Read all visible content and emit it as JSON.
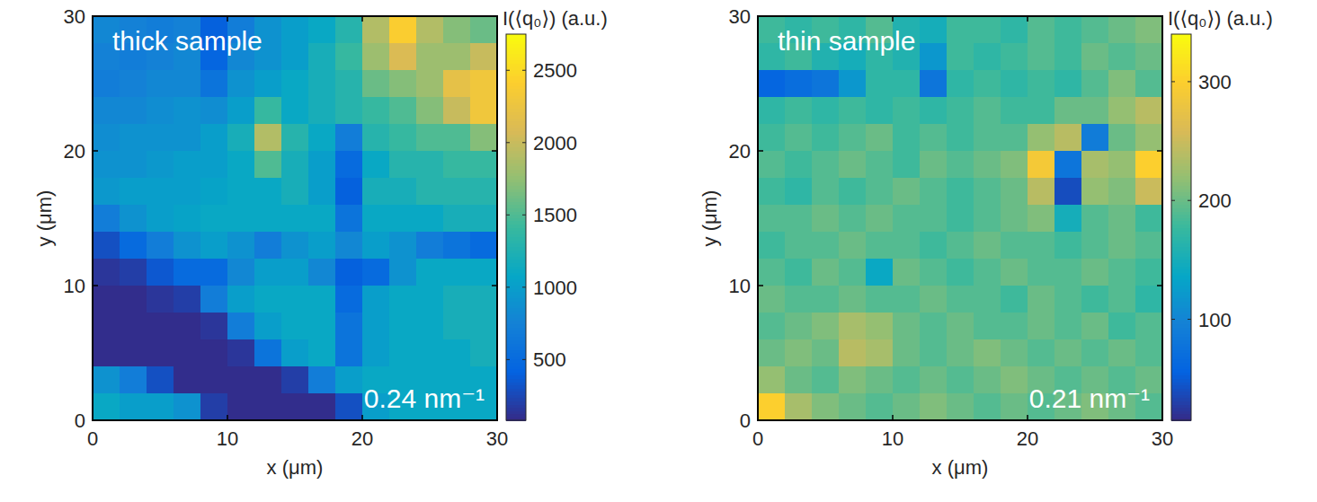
{
  "chart_data": [
    {
      "type": "heatmap",
      "title": "thick sample",
      "annotation": "0.24 nm⁻¹",
      "x_label": "x (μm)",
      "y_label": "y (μm)",
      "xlim": [
        0,
        30
      ],
      "ylim": [
        0,
        30
      ],
      "xticks": [
        0,
        10,
        20,
        30
      ],
      "yticks": [
        0,
        10,
        20,
        30
      ],
      "colorbar_label": "I(⟨q₀⟩) (a.u.)",
      "colorbar_range": [
        80,
        2750
      ],
      "colorbar_ticks": [
        500,
        1000,
        1500,
        2000,
        2500
      ],
      "cells": [
        [
          800,
          750,
          700,
          750,
          400,
          700,
          900,
          1000,
          1100,
          1300,
          1900,
          2400,
          1900,
          1700,
          1600
        ],
        [
          750,
          700,
          750,
          800,
          450,
          800,
          900,
          1000,
          1200,
          1400,
          1800,
          2100,
          1800,
          1800,
          2000
        ],
        [
          700,
          750,
          800,
          800,
          600,
          900,
          1000,
          1100,
          1200,
          1300,
          1600,
          1700,
          1800,
          2200,
          2300
        ],
        [
          800,
          800,
          850,
          900,
          850,
          1000,
          1400,
          1100,
          1200,
          1300,
          1400,
          1500,
          1700,
          2000,
          2300
        ],
        [
          850,
          900,
          900,
          900,
          1000,
          1200,
          1900,
          1300,
          1100,
          700,
          1300,
          1400,
          1500,
          1500,
          1700
        ],
        [
          900,
          900,
          950,
          1000,
          1000,
          1100,
          1500,
          1200,
          1000,
          500,
          1100,
          1300,
          1300,
          1400,
          1400
        ],
        [
          950,
          1000,
          1000,
          1000,
          1050,
          1100,
          1100,
          1200,
          1000,
          400,
          1200,
          1200,
          1300,
          1300,
          1300
        ],
        [
          700,
          900,
          1000,
          1050,
          1100,
          1100,
          1100,
          1100,
          1100,
          600,
          1100,
          1100,
          1100,
          1200,
          1200
        ],
        [
          300,
          500,
          700,
          900,
          1000,
          900,
          700,
          900,
          1000,
          800,
          1000,
          900,
          700,
          600,
          500
        ],
        [
          150,
          200,
          350,
          500,
          500,
          800,
          1000,
          1000,
          800,
          400,
          500,
          900,
          1100,
          1100,
          1100
        ],
        [
          100,
          100,
          150,
          200,
          700,
          1000,
          1100,
          1100,
          1100,
          500,
          1000,
          1100,
          1100,
          1200,
          1200
        ],
        [
          100,
          100,
          100,
          100,
          150,
          700,
          1000,
          1100,
          1100,
          600,
          1000,
          1100,
          1100,
          1200,
          1200
        ],
        [
          100,
          100,
          100,
          100,
          100,
          150,
          600,
          1000,
          1100,
          600,
          1000,
          1100,
          1100,
          1100,
          1200
        ],
        [
          900,
          700,
          300,
          100,
          100,
          100,
          100,
          200,
          700,
          1000,
          1100,
          1100,
          1100,
          1100,
          1100
        ],
        [
          1100,
          1000,
          1000,
          900,
          200,
          100,
          100,
          100,
          100,
          300,
          1000,
          1100,
          1100,
          1100,
          1100
        ]
      ]
    },
    {
      "type": "heatmap",
      "title": "thin sample",
      "annotation": "0.21 nm⁻¹",
      "x_label": "x (μm)",
      "y_label": "y (μm)",
      "xlim": [
        0,
        30
      ],
      "ylim": [
        0,
        30
      ],
      "xticks": [
        0,
        10,
        20,
        30
      ],
      "yticks": [
        0,
        10,
        20,
        30
      ],
      "colorbar_label": "I(⟨q₀⟩) (a.u.)",
      "colorbar_range": [
        15,
        340
      ],
      "colorbar_ticks": [
        100,
        200,
        300
      ],
      "cells": [
        [
          180,
          170,
          180,
          170,
          190,
          160,
          150,
          180,
          180,
          170,
          190,
          180,
          190,
          200,
          210
        ],
        [
          170,
          180,
          160,
          150,
          170,
          160,
          120,
          180,
          170,
          180,
          190,
          180,
          200,
          190,
          200
        ],
        [
          60,
          70,
          80,
          120,
          170,
          170,
          80,
          170,
          180,
          170,
          180,
          170,
          190,
          210,
          190
        ],
        [
          170,
          180,
          170,
          180,
          170,
          180,
          170,
          180,
          190,
          180,
          180,
          200,
          200,
          220,
          240
        ],
        [
          180,
          190,
          180,
          190,
          200,
          180,
          190,
          180,
          190,
          190,
          220,
          240,
          90,
          200,
          220
        ],
        [
          190,
          180,
          190,
          200,
          190,
          180,
          200,
          190,
          200,
          210,
          290,
          80,
          230,
          220,
          300
        ],
        [
          180,
          170,
          190,
          180,
          190,
          200,
          190,
          180,
          190,
          200,
          240,
          40,
          220,
          210,
          250
        ],
        [
          190,
          190,
          200,
          190,
          200,
          190,
          190,
          180,
          190,
          200,
          210,
          150,
          190,
          200,
          180
        ],
        [
          180,
          190,
          190,
          200,
          190,
          190,
          180,
          190,
          200,
          190,
          190,
          180,
          190,
          200,
          190
        ],
        [
          190,
          180,
          200,
          190,
          140,
          200,
          190,
          180,
          190,
          200,
          190,
          190,
          200,
          190,
          180
        ],
        [
          200,
          190,
          190,
          200,
          190,
          190,
          200,
          190,
          190,
          180,
          200,
          190,
          180,
          190,
          170
        ],
        [
          190,
          200,
          210,
          230,
          220,
          200,
          190,
          200,
          190,
          190,
          200,
          190,
          200,
          180,
          190
        ],
        [
          200,
          210,
          200,
          240,
          230,
          200,
          190,
          200,
          210,
          200,
          190,
          200,
          190,
          200,
          190
        ],
        [
          220,
          200,
          190,
          210,
          200,
          190,
          200,
          190,
          200,
          210,
          200,
          190,
          200,
          190,
          200
        ],
        [
          300,
          230,
          210,
          200,
          190,
          200,
          210,
          200,
          190,
          200,
          190,
          200,
          210,
          200,
          190
        ]
      ]
    }
  ]
}
